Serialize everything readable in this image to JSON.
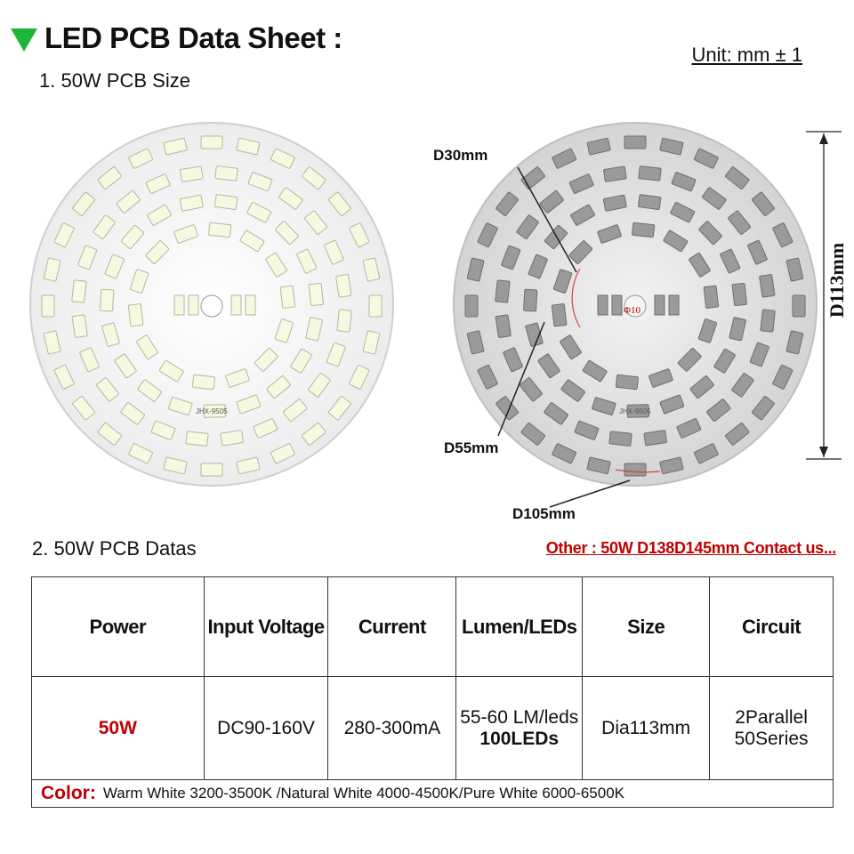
{
  "header": {
    "title": "LED PCB Data Sheet :",
    "unit": "Unit: mm ± 1"
  },
  "section1": {
    "title": "1. 50W PCB Size"
  },
  "pcb_left": {
    "model": "JHX-9505"
  },
  "pcb_right": {
    "model": "JHX-9505",
    "center_hole_label": "Φ10",
    "callouts": {
      "d30": "D30mm",
      "d55": "D55mm",
      "d105": "D105mm",
      "d113": "D113mm"
    }
  },
  "section2": {
    "title": "2. 50W PCB Datas",
    "other_link": "Other : 50W D138D145mm Contact us..."
  },
  "table": {
    "headers": [
      "Power",
      "Input Voltage",
      "Current",
      "Lumen/LEDs",
      "Size",
      "Circuit"
    ],
    "values": {
      "power": "50W",
      "input_voltage": "DC90-160V",
      "current": "280-300mA",
      "lumen_line1": "55-60 LM/leds",
      "lumen_line2": "100LEDs",
      "size": "Dia113mm",
      "circuit_line1": "2Parallel",
      "circuit_line2": "50Series"
    },
    "color_label": "Color:",
    "color_text": "Warm White 3200-3500K /Natural White 4000-4500K/Pure White 6000-6500K"
  },
  "colors": {
    "accent_green": "#1db53c",
    "accent_red": "#c00000",
    "led_white": "#f4fae0",
    "led_gray": "#9a9a9a",
    "board_white": "#f7f7f7",
    "board_gray": "#dcdcdc"
  }
}
